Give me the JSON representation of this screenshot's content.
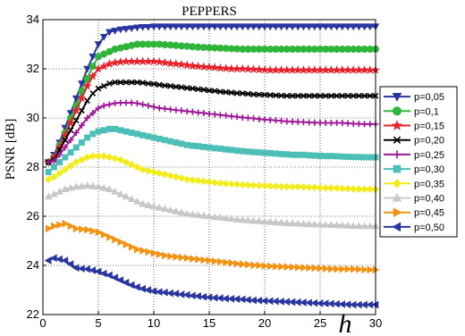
{
  "chart_data": {
    "type": "line",
    "title": "PEPPERS",
    "xlabel": "h",
    "ylabel": "PSNR [dB]",
    "xlim": [
      0,
      30
    ],
    "ylim": [
      22,
      34
    ],
    "xticks": [
      0,
      5,
      10,
      15,
      20,
      25,
      30
    ],
    "yticks": [
      22,
      24,
      26,
      28,
      30,
      32,
      34
    ],
    "grid": true,
    "legend_position": "right",
    "x": [
      0.5,
      1,
      1.5,
      2,
      2.5,
      3,
      3.5,
      4,
      4.5,
      5,
      5.5,
      6,
      6.5,
      7,
      7.5,
      8,
      8.5,
      9,
      9.5,
      10,
      10.5,
      11,
      11.5,
      12,
      12.5,
      13,
      13.5,
      14,
      14.5,
      15,
      15.5,
      16,
      16.5,
      17,
      17.5,
      18,
      18.5,
      19,
      19.5,
      20,
      20.5,
      21,
      21.5,
      22,
      22.5,
      23,
      23.5,
      24,
      24.5,
      25,
      25.5,
      26,
      26.5,
      27,
      27.5,
      28,
      28.5,
      29,
      29.5,
      30
    ],
    "series": [
      {
        "name": "p=0,05",
        "color": "#2b35a0",
        "marker": "triangle-down",
        "values": [
          28.2,
          28.5,
          29.0,
          29.6,
          30.2,
          30.8,
          31.4,
          32.0,
          32.5,
          33.0,
          33.3,
          33.5,
          33.55,
          33.6,
          33.62,
          33.65,
          33.68,
          33.7,
          33.7,
          33.72,
          33.72,
          33.72,
          33.72,
          33.72,
          33.72,
          33.72,
          33.72,
          33.72,
          33.72,
          33.72,
          33.72,
          33.72,
          33.72,
          33.72,
          33.72,
          33.72,
          33.72,
          33.72,
          33.72,
          33.72,
          33.72,
          33.72,
          33.72,
          33.72,
          33.72,
          33.72,
          33.72,
          33.72,
          33.72,
          33.72,
          33.72,
          33.72,
          33.72,
          33.72,
          33.72,
          33.72,
          33.72,
          33.72,
          33.72,
          33.72
        ]
      },
      {
        "name": "p=0,1",
        "color": "#2fb53a",
        "marker": "circle",
        "values": [
          28.2,
          28.4,
          28.9,
          29.4,
          30.0,
          30.5,
          31.1,
          31.6,
          32.1,
          32.5,
          32.6,
          32.7,
          32.8,
          32.85,
          32.9,
          32.95,
          33.0,
          33.0,
          33.0,
          33.0,
          33.0,
          32.98,
          32.97,
          32.95,
          32.93,
          32.92,
          32.9,
          32.88,
          32.87,
          32.86,
          32.85,
          32.84,
          32.83,
          32.82,
          32.81,
          32.8,
          32.8,
          32.8,
          32.8,
          32.8,
          32.8,
          32.8,
          32.8,
          32.8,
          32.8,
          32.8,
          32.8,
          32.8,
          32.8,
          32.8,
          32.8,
          32.8,
          32.8,
          32.8,
          32.8,
          32.8,
          32.8,
          32.8,
          32.8,
          32.8
        ]
      },
      {
        "name": "p=0,15",
        "color": "#e8202a",
        "marker": "star",
        "values": [
          28.2,
          28.4,
          28.8,
          29.3,
          29.8,
          30.3,
          30.8,
          31.3,
          31.7,
          32.0,
          32.1,
          32.2,
          32.25,
          32.28,
          32.3,
          32.3,
          32.3,
          32.3,
          32.3,
          32.3,
          32.28,
          32.25,
          32.22,
          32.2,
          32.18,
          32.15,
          32.12,
          32.1,
          32.08,
          32.07,
          32.05,
          32.03,
          32.02,
          32.0,
          32.0,
          32.0,
          31.99,
          31.98,
          31.97,
          31.96,
          31.95,
          31.95,
          31.95,
          31.95,
          31.95,
          31.95,
          31.95,
          31.95,
          31.95,
          31.95,
          31.95,
          31.95,
          31.95,
          31.95,
          31.95,
          31.95,
          31.95,
          31.95,
          31.95,
          31.95
        ]
      },
      {
        "name": "p=0,20",
        "color": "#000000",
        "marker": "x",
        "values": [
          28.2,
          28.3,
          28.7,
          29.1,
          29.5,
          29.9,
          30.3,
          30.7,
          31.0,
          31.2,
          31.3,
          31.4,
          31.45,
          31.45,
          31.45,
          31.45,
          31.45,
          31.43,
          31.4,
          31.38,
          31.35,
          31.32,
          31.3,
          31.27,
          31.25,
          31.22,
          31.2,
          31.17,
          31.15,
          31.12,
          31.1,
          31.07,
          31.05,
          31.03,
          31.01,
          31.0,
          30.98,
          30.96,
          30.95,
          30.94,
          30.93,
          30.92,
          30.91,
          30.9,
          30.9,
          30.9,
          30.9,
          30.9,
          30.9,
          30.9,
          30.9,
          30.9,
          30.9,
          30.9,
          30.9,
          30.9,
          30.9,
          30.9,
          30.9,
          30.9
        ]
      },
      {
        "name": "p=0,25",
        "color": "#a0169b",
        "marker": "plus",
        "values": [
          28.2,
          28.25,
          28.5,
          28.8,
          29.1,
          29.4,
          29.7,
          30.0,
          30.2,
          30.4,
          30.5,
          30.55,
          30.6,
          30.62,
          30.62,
          30.62,
          30.6,
          30.55,
          30.5,
          30.45,
          30.4,
          30.38,
          30.35,
          30.32,
          30.3,
          30.27,
          30.25,
          30.22,
          30.2,
          30.17,
          30.15,
          30.12,
          30.1,
          30.07,
          30.05,
          30.02,
          30.0,
          29.98,
          29.95,
          29.93,
          29.92,
          29.9,
          29.88,
          29.86,
          29.85,
          29.84,
          29.83,
          29.82,
          29.81,
          29.8,
          29.8,
          29.8,
          29.8,
          29.8,
          29.78,
          29.77,
          29.76,
          29.75,
          29.75,
          29.75
        ]
      },
      {
        "name": "p=0,30",
        "color": "#4dbfb6",
        "marker": "square",
        "values": [
          27.8,
          28.0,
          28.2,
          28.4,
          28.6,
          28.8,
          29.0,
          29.2,
          29.35,
          29.45,
          29.5,
          29.55,
          29.55,
          29.5,
          29.45,
          29.4,
          29.35,
          29.3,
          29.25,
          29.2,
          29.15,
          29.1,
          29.05,
          29.0,
          28.95,
          28.9,
          28.87,
          28.85,
          28.82,
          28.8,
          28.77,
          28.75,
          28.72,
          28.7,
          28.67,
          28.65,
          28.63,
          28.61,
          28.6,
          28.58,
          28.57,
          28.55,
          28.53,
          28.52,
          28.5,
          28.5,
          28.5,
          28.48,
          28.47,
          28.46,
          28.45,
          28.45,
          28.44,
          28.43,
          28.42,
          28.41,
          28.41,
          28.4,
          28.4,
          28.4
        ]
      },
      {
        "name": "p=0,35",
        "color": "#f2ec1a",
        "marker": "diamond",
        "values": [
          27.5,
          27.6,
          27.75,
          27.9,
          28.05,
          28.2,
          28.3,
          28.4,
          28.45,
          28.45,
          28.45,
          28.4,
          28.35,
          28.3,
          28.2,
          28.1,
          28.0,
          27.9,
          27.85,
          27.8,
          27.75,
          27.7,
          27.65,
          27.6,
          27.55,
          27.5,
          27.47,
          27.45,
          27.42,
          27.4,
          27.37,
          27.35,
          27.33,
          27.31,
          27.3,
          27.28,
          27.27,
          27.26,
          27.25,
          27.24,
          27.23,
          27.22,
          27.21,
          27.2,
          27.2,
          27.2,
          27.19,
          27.18,
          27.17,
          27.16,
          27.15,
          27.15,
          27.14,
          27.13,
          27.12,
          27.11,
          27.1,
          27.1,
          27.1,
          27.1
        ]
      },
      {
        "name": "p=0,40",
        "color": "#c8c8c8",
        "marker": "triangle-up",
        "values": [
          26.8,
          26.9,
          27.0,
          27.1,
          27.15,
          27.2,
          27.22,
          27.25,
          27.22,
          27.2,
          27.15,
          27.1,
          27.0,
          26.9,
          26.8,
          26.7,
          26.6,
          26.5,
          26.45,
          26.4,
          26.35,
          26.3,
          26.25,
          26.2,
          26.15,
          26.1,
          26.07,
          26.05,
          26.02,
          26.0,
          25.97,
          25.95,
          25.92,
          25.9,
          25.87,
          25.85,
          25.83,
          25.81,
          25.8,
          25.78,
          25.77,
          25.75,
          25.74,
          25.72,
          25.71,
          25.7,
          25.69,
          25.68,
          25.67,
          25.66,
          25.65,
          25.65,
          25.64,
          25.63,
          25.62,
          25.61,
          25.6,
          25.6,
          25.6,
          25.6
        ]
      },
      {
        "name": "p=0,45",
        "color": "#f39313",
        "marker": "triangle-right",
        "values": [
          25.5,
          25.6,
          25.65,
          25.7,
          25.6,
          25.5,
          25.47,
          25.45,
          25.4,
          25.35,
          25.25,
          25.15,
          25.05,
          24.95,
          24.85,
          24.75,
          24.65,
          24.6,
          24.55,
          24.5,
          24.45,
          24.4,
          24.37,
          24.35,
          24.32,
          24.3,
          24.27,
          24.25,
          24.22,
          24.2,
          24.17,
          24.15,
          24.12,
          24.1,
          24.07,
          24.05,
          24.03,
          24.01,
          24.0,
          23.98,
          23.97,
          23.96,
          23.95,
          23.94,
          23.93,
          23.92,
          23.91,
          23.9,
          23.89,
          23.88,
          23.87,
          23.86,
          23.85,
          23.85,
          23.85,
          23.85,
          23.84,
          23.83,
          23.82,
          23.82
        ]
      },
      {
        "name": "p=0,50",
        "color": "#2b35a0",
        "marker": "triangle-left",
        "values": [
          24.2,
          24.3,
          24.25,
          24.2,
          24.05,
          23.9,
          23.87,
          23.85,
          23.8,
          23.75,
          23.67,
          23.6,
          23.5,
          23.4,
          23.3,
          23.2,
          23.12,
          23.05,
          23.0,
          22.95,
          22.92,
          22.9,
          22.87,
          22.85,
          22.82,
          22.8,
          22.77,
          22.75,
          22.72,
          22.7,
          22.68,
          22.67,
          22.65,
          22.64,
          22.63,
          22.62,
          22.6,
          22.58,
          22.57,
          22.56,
          22.55,
          22.54,
          22.53,
          22.52,
          22.51,
          22.5,
          22.49,
          22.48,
          22.47,
          22.46,
          22.45,
          22.44,
          22.43,
          22.42,
          22.41,
          22.4,
          22.4,
          22.4,
          22.4,
          22.4
        ]
      }
    ]
  }
}
